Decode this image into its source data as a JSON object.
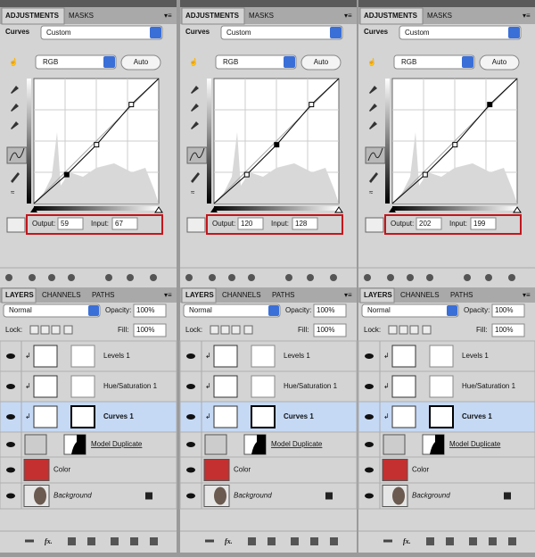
{
  "panels": [
    {
      "adjustments": {
        "tabs": [
          "ADJUSTMENTS",
          "MASKS"
        ],
        "type": "Curves",
        "preset": "Custom",
        "channel": "RGB",
        "auto": "Auto",
        "output_label": "Output:",
        "output": 59,
        "input_label": "Input:",
        "input": 67
      },
      "layers": {
        "tabs": [
          "LAYERS",
          "CHANNELS",
          "PATHS"
        ],
        "blend": "Normal",
        "opacity_label": "Opacity:",
        "opacity": "100%",
        "lock_label": "Lock:",
        "fill_label": "Fill:",
        "fill": "100%",
        "items": [
          "Levels 1",
          "Hue/Saturation 1",
          "Curves 1",
          "Model Duplicate",
          "Color",
          "Background"
        ],
        "fx": "fx."
      }
    },
    {
      "adjustments": {
        "tabs": [
          "ADJUSTMENTS",
          "MASKS"
        ],
        "type": "Curves",
        "preset": "Custom",
        "channel": "RGB",
        "auto": "Auto",
        "output_label": "Output:",
        "output": 120,
        "input_label": "Input:",
        "input": 128
      },
      "layers": {
        "tabs": [
          "LAYERS",
          "CHANNELS",
          "PATHS"
        ],
        "blend": "Normal",
        "opacity_label": "Opacity:",
        "opacity": "100%",
        "lock_label": "Lock:",
        "fill_label": "Fill:",
        "fill": "100%",
        "items": [
          "Levels 1",
          "Hue/Saturation 1",
          "Curves 1",
          "Model Duplicate",
          "Color",
          "Background"
        ],
        "fx": "fx."
      }
    },
    {
      "adjustments": {
        "tabs": [
          "ADJUSTMENTS",
          "MASKS"
        ],
        "type": "Curves",
        "preset": "Custom",
        "channel": "RGB",
        "auto": "Auto",
        "output_label": "Output:",
        "output": 202,
        "input_label": "Input:",
        "input": 199
      },
      "layers": {
        "tabs": [
          "LAYERS",
          "CHANNELS",
          "PATHS"
        ],
        "blend": "Normal",
        "opacity_label": "Opacity:",
        "opacity": "100%",
        "lock_label": "Lock:",
        "fill_label": "Fill:",
        "fill": "100%",
        "items": [
          "Levels 1",
          "Hue/Saturation 1",
          "Curves 1",
          "Model Duplicate",
          "Color",
          "Background"
        ],
        "fx": "fx."
      }
    }
  ]
}
